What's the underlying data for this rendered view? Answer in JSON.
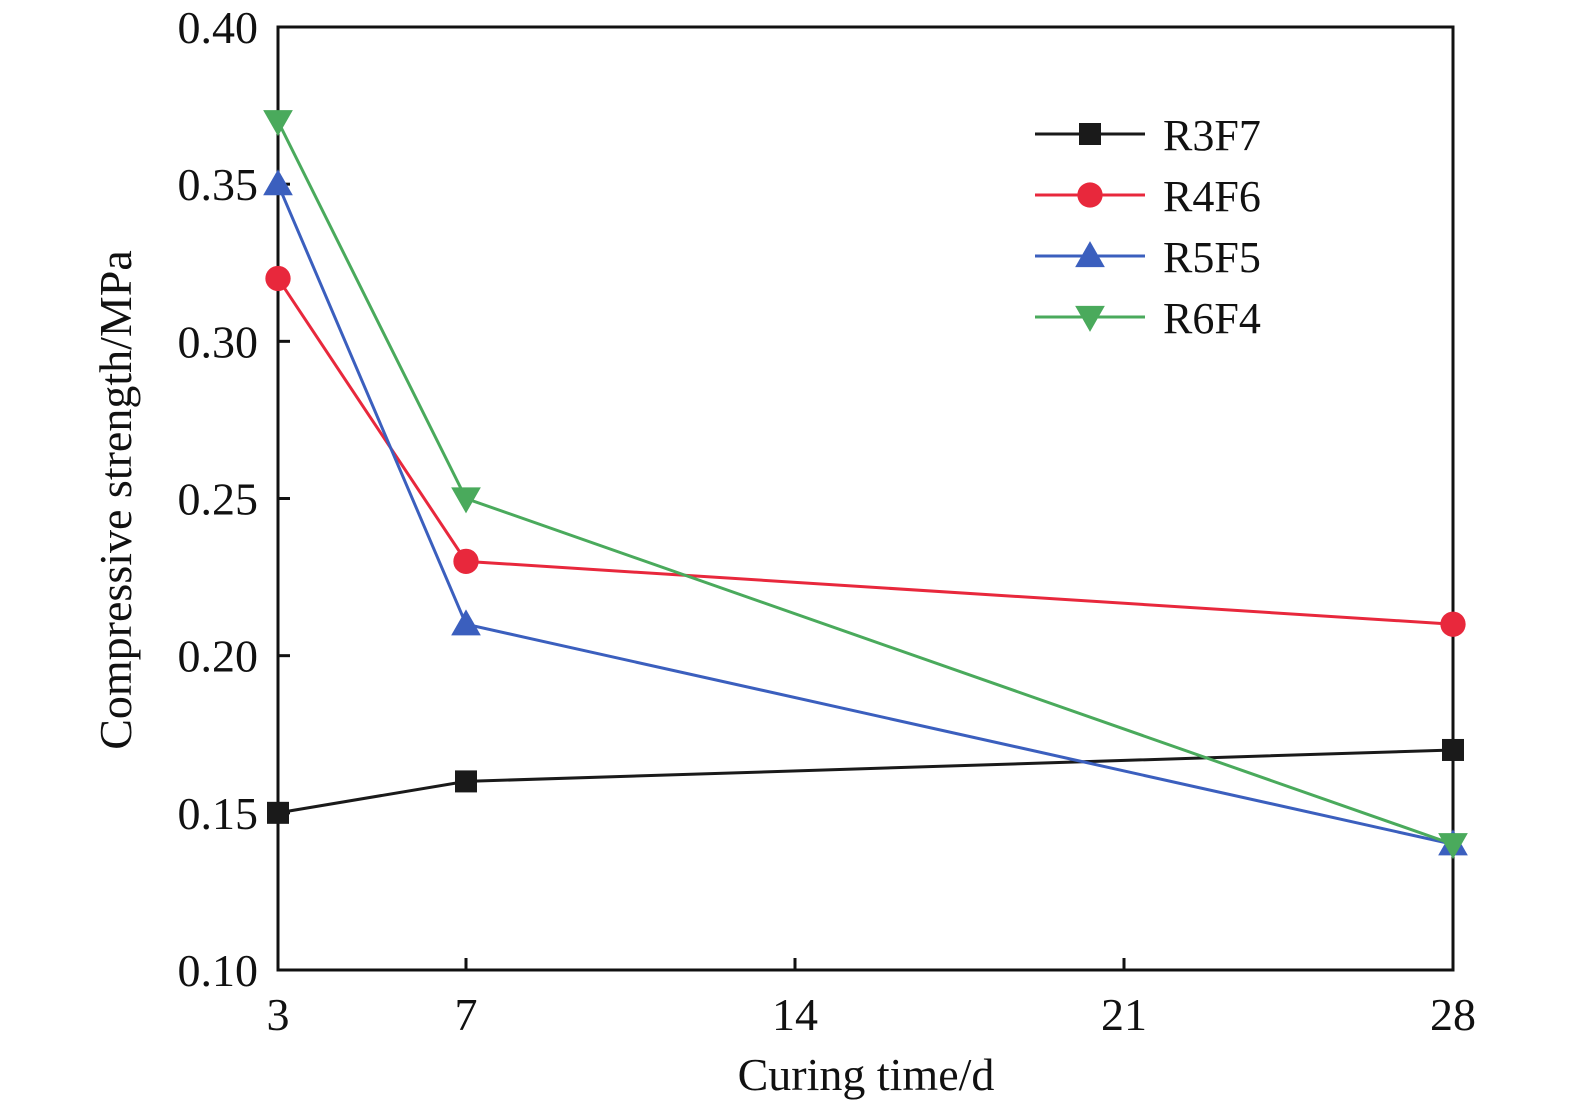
{
  "chart_data": {
    "type": "line",
    "xlabel": "Curing time/d",
    "ylabel": "Compressive strength/MPa",
    "x": [
      3,
      7,
      28
    ],
    "xlim": [
      3,
      28
    ],
    "ylim": [
      0.1,
      0.4
    ],
    "x_ticks": [
      3,
      7,
      14,
      21,
      28
    ],
    "x_tick_labels": [
      "3",
      "7",
      "14",
      "21",
      "28"
    ],
    "y_ticks": [
      0.1,
      0.15,
      0.2,
      0.25,
      0.3,
      0.35,
      0.4
    ],
    "y_tick_labels": [
      "0.10",
      "0.15",
      "0.20",
      "0.25",
      "0.30",
      "0.35",
      "0.40"
    ],
    "grid": false,
    "legend_position": "top-right",
    "series": [
      {
        "name": "R3F7",
        "marker": "square",
        "color": "#1a1a1a",
        "values": [
          0.15,
          0.16,
          0.17
        ]
      },
      {
        "name": "R4F6",
        "marker": "circle",
        "color": "#e8283c",
        "values": [
          0.32,
          0.23,
          0.21
        ]
      },
      {
        "name": "R5F5",
        "marker": "triangle-up",
        "color": "#3b5fbe",
        "values": [
          0.35,
          0.21,
          0.14
        ]
      },
      {
        "name": "R6F4",
        "marker": "triangle-down",
        "color": "#4aaa5c",
        "values": [
          0.37,
          0.25,
          0.14
        ]
      }
    ]
  }
}
